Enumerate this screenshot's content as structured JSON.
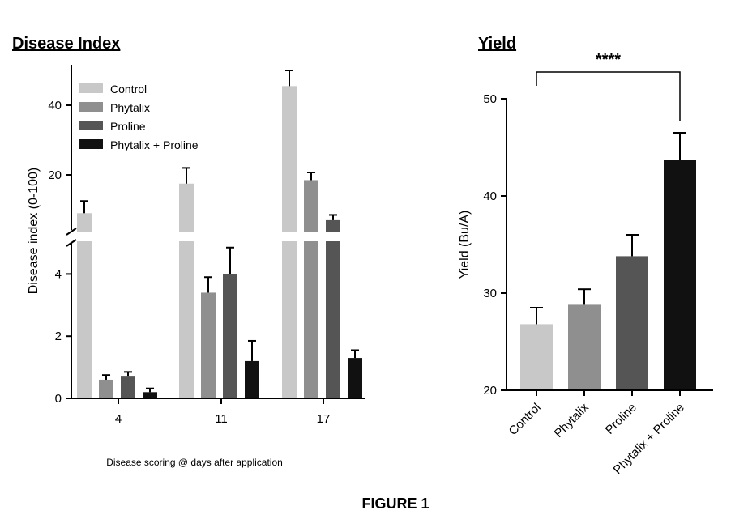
{
  "figure_caption": "FIGURE 1",
  "colors": {
    "Control": "#c8c8c8",
    "Phytalix": "#8f8f8f",
    "Proline": "#555555",
    "Phytalix + Proline": "#111111"
  },
  "chart_data": [
    {
      "type": "bar",
      "title": "Disease Index",
      "xlabel": "Disease scoring @ days after application",
      "ylabel": "Disease index (0-100)",
      "broken_axis": true,
      "ylim_lower": [
        0,
        5
      ],
      "ylim_upper": [
        5,
        50
      ],
      "yticks_lower": [
        "0",
        "2",
        "4"
      ],
      "yticks_upper": [
        "20",
        "40"
      ],
      "categories": [
        "4",
        "11",
        "17"
      ],
      "legend_position": "top-left",
      "series": [
        {
          "name": "Control",
          "values": [
            9,
            17.5,
            45.5
          ],
          "errors": [
            3.5,
            4.5,
            4.5
          ]
        },
        {
          "name": "Phytalix",
          "values": [
            0.6,
            3.4,
            18.5
          ],
          "errors": [
            0.15,
            0.5,
            2.2
          ]
        },
        {
          "name": "Proline",
          "values": [
            0.7,
            4.0,
            7.0
          ],
          "errors": [
            0.15,
            0.85,
            1.5
          ]
        },
        {
          "name": "Phytalix + Proline",
          "values": [
            0.2,
            1.2,
            1.3
          ],
          "errors": [
            0.12,
            0.65,
            0.25
          ]
        }
      ]
    },
    {
      "type": "bar",
      "title": "Yield",
      "xlabel": "",
      "ylabel": "Yield (Bu/A)",
      "ylim": [
        20,
        50
      ],
      "yticks": [
        "20",
        "30",
        "40",
        "50"
      ],
      "categories": [
        "Control",
        "Phytalix",
        "Proline",
        "Phytalix + Proline"
      ],
      "values": [
        26.8,
        28.8,
        33.8,
        43.7
      ],
      "errors": [
        1.7,
        1.6,
        2.2,
        2.8
      ],
      "significance": {
        "from": "Control",
        "to": "Phytalix + Proline",
        "label": "****"
      }
    }
  ]
}
